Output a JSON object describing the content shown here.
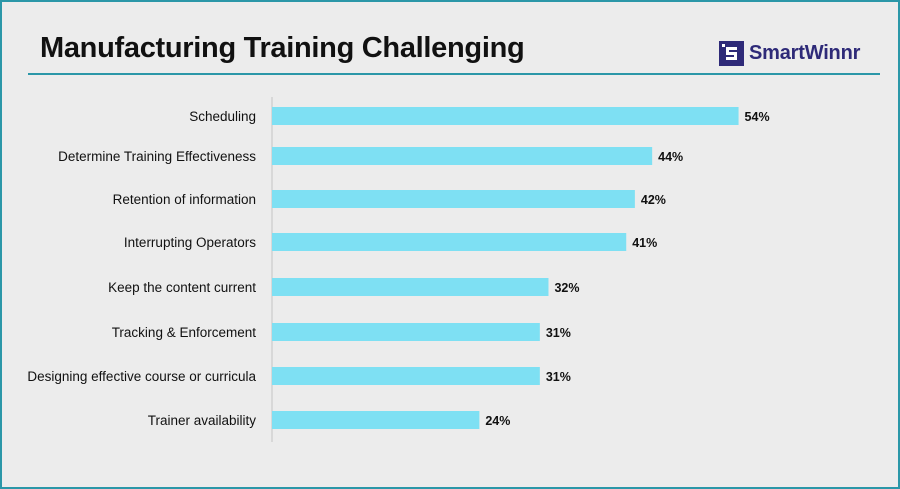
{
  "header": {
    "title": "Manufacturing Training Challenging",
    "logo_text": "SmartWinnr",
    "logo_color": "#2e2a78"
  },
  "colors": {
    "bar": "#7ee0f3",
    "accent": "#2b97a8",
    "background": "#ececec"
  },
  "chart_data": {
    "type": "bar",
    "orientation": "horizontal",
    "title": "Manufacturing Training Challenging",
    "categories": [
      "Scheduling",
      "Determine Training Effectiveness",
      "Retention of information",
      "Interrupting Operators",
      "Keep the content current",
      "Tracking & Enforcement",
      "Designing effective course or curricula",
      "Trainer availability"
    ],
    "values": [
      54,
      44,
      42,
      41,
      32,
      31,
      31,
      24
    ],
    "value_labels": [
      "54%",
      "44%",
      "42%",
      "41%",
      "32%",
      "31%",
      "31%",
      "24%"
    ],
    "unit": "%",
    "xlabel": "",
    "ylabel": "",
    "grid": false,
    "legend": "none"
  }
}
